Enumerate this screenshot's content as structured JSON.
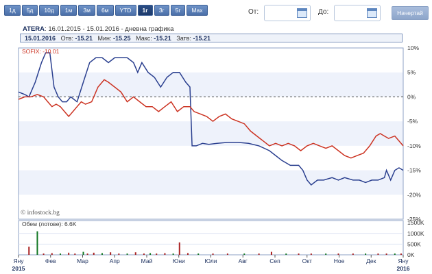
{
  "toolbar": {
    "ranges": [
      "1д",
      "5д",
      "10д",
      "1м",
      "3м",
      "6м",
      "YTD",
      "1г",
      "3г",
      "5г",
      "Max"
    ],
    "active_range": "1г",
    "from_label": "От:",
    "to_label": "До:",
    "draw_label": "Начертай"
  },
  "header": {
    "symbol": "ATERA",
    "period": "16.01.2015 - 15.01.2016 - дневна графика",
    "quote": {
      "date": "15.01.2016",
      "open_label": "Отв:",
      "open": "-15.21",
      "min_label": "Мин:",
      "min": "-15.25",
      "max_label": "Макс:",
      "max": "-15.21",
      "close_label": "Затв:",
      "close": "-15.21"
    }
  },
  "chart_data": [
    {
      "type": "line",
      "legend": "SOFIX: -10.01",
      "watermark": "© infostock.bg",
      "ylabel_ticks": [
        "10%",
        "5%",
        "0%",
        "-5%",
        "-10%",
        "-15%",
        "-20%",
        "-25%"
      ],
      "ylim": [
        -25,
        10
      ],
      "x_ticks": [
        "Яну 2015",
        "Фев",
        "Мар",
        "Апр",
        "Май",
        "Юни",
        "Юли",
        "Авг",
        "Сеп",
        "Окт",
        "Ное",
        "Дек",
        "Яну 2016"
      ],
      "series": [
        {
          "name": "ATERA",
          "color": "#2a3f8f",
          "points": [
            [
              0,
              1
            ],
            [
              3,
              0.5
            ],
            [
              5,
              0
            ],
            [
              8,
              3
            ],
            [
              11,
              7
            ],
            [
              13,
              9
            ],
            [
              15,
              9
            ],
            [
              17,
              2
            ],
            [
              19,
              0
            ],
            [
              21,
              -1
            ],
            [
              23,
              -1
            ],
            [
              25,
              0
            ],
            [
              28,
              -1
            ],
            [
              31,
              3
            ],
            [
              34,
              7
            ],
            [
              37,
              8
            ],
            [
              40,
              8
            ],
            [
              43,
              7
            ],
            [
              46,
              8
            ],
            [
              49,
              8
            ],
            [
              52,
              8
            ],
            [
              55,
              7
            ],
            [
              57,
              5
            ],
            [
              59,
              7
            ],
            [
              62,
              5
            ],
            [
              65,
              4
            ],
            [
              68,
              2
            ],
            [
              71,
              4
            ],
            [
              74,
              5
            ],
            [
              77,
              5
            ],
            [
              80,
              3
            ],
            [
              82,
              2
            ],
            [
              83,
              -10
            ],
            [
              85,
              -10
            ],
            [
              88,
              -9.5
            ],
            [
              91,
              -9.7
            ],
            [
              95,
              -9.5
            ],
            [
              100,
              -9.3
            ],
            [
              105,
              -9.3
            ],
            [
              110,
              -9.5
            ],
            [
              115,
              -10
            ],
            [
              120,
              -11
            ],
            [
              123,
              -12
            ],
            [
              126,
              -13
            ],
            [
              130,
              -14
            ],
            [
              134,
              -14
            ],
            [
              136,
              -15
            ],
            [
              138,
              -17
            ],
            [
              140,
              -18
            ],
            [
              143,
              -17
            ],
            [
              146,
              -17
            ],
            [
              150,
              -16.5
            ],
            [
              153,
              -17
            ],
            [
              156,
              -16.5
            ],
            [
              160,
              -17
            ],
            [
              163,
              -17
            ],
            [
              166,
              -17.5
            ],
            [
              169,
              -17
            ],
            [
              172,
              -17
            ],
            [
              175,
              -16.5
            ],
            [
              176,
              -15
            ],
            [
              178,
              -17
            ],
            [
              180,
              -15
            ],
            [
              182,
              -14.5
            ],
            [
              184,
              -15
            ]
          ]
        },
        {
          "name": "SOFIX",
          "color": "#cc3322",
          "points": [
            [
              0,
              -0.5
            ],
            [
              3,
              0
            ],
            [
              6,
              0
            ],
            [
              9,
              0.5
            ],
            [
              12,
              0
            ],
            [
              14,
              -1
            ],
            [
              16,
              -2
            ],
            [
              18,
              -1.5
            ],
            [
              20,
              -2
            ],
            [
              22,
              -3
            ],
            [
              24,
              -4
            ],
            [
              26,
              -3
            ],
            [
              28,
              -2
            ],
            [
              30,
              -1
            ],
            [
              32,
              -1.5
            ],
            [
              35,
              -1
            ],
            [
              38,
              2
            ],
            [
              41,
              3.5
            ],
            [
              43,
              3
            ],
            [
              46,
              2
            ],
            [
              49,
              1
            ],
            [
              52,
              -1
            ],
            [
              55,
              0
            ],
            [
              58,
              -1
            ],
            [
              61,
              -2
            ],
            [
              64,
              -2
            ],
            [
              67,
              -3
            ],
            [
              70,
              -2
            ],
            [
              73,
              -1
            ],
            [
              76,
              -3
            ],
            [
              79,
              -2
            ],
            [
              82,
              -2
            ],
            [
              84,
              -3
            ],
            [
              87,
              -3.5
            ],
            [
              90,
              -4
            ],
            [
              93,
              -5
            ],
            [
              96,
              -4
            ],
            [
              99,
              -3.5
            ],
            [
              102,
              -4.5
            ],
            [
              105,
              -5
            ],
            [
              108,
              -5.5
            ],
            [
              111,
              -7
            ],
            [
              114,
              -8
            ],
            [
              117,
              -9
            ],
            [
              120,
              -10
            ],
            [
              123,
              -9.5
            ],
            [
              126,
              -10
            ],
            [
              129,
              -9.5
            ],
            [
              132,
              -10
            ],
            [
              135,
              -11
            ],
            [
              138,
              -10
            ],
            [
              141,
              -9.5
            ],
            [
              144,
              -10
            ],
            [
              147,
              -10.5
            ],
            [
              150,
              -10
            ],
            [
              153,
              -11
            ],
            [
              156,
              -12
            ],
            [
              159,
              -12.5
            ],
            [
              162,
              -12
            ],
            [
              165,
              -11.5
            ],
            [
              168,
              -10
            ],
            [
              171,
              -8
            ],
            [
              173,
              -7.5
            ],
            [
              175,
              -8
            ],
            [
              177,
              -8.5
            ],
            [
              180,
              -8
            ],
            [
              182,
              -9
            ],
            [
              184,
              -10
            ]
          ]
        }
      ]
    },
    {
      "type": "bar",
      "legend": "Обем (лотове): 6.6K",
      "ylabel_ticks": [
        "1500K",
        "1000K",
        "500K",
        "0K"
      ],
      "ylim": [
        0,
        1600
      ],
      "bars": [
        [
          5,
          380
        ],
        [
          9,
          1100
        ],
        [
          12,
          60
        ],
        [
          16,
          80
        ],
        [
          20,
          60
        ],
        [
          24,
          100
        ],
        [
          27,
          60
        ],
        [
          31,
          140
        ],
        [
          33,
          60
        ],
        [
          36,
          100
        ],
        [
          40,
          80
        ],
        [
          44,
          120
        ],
        [
          48,
          60
        ],
        [
          52,
          60
        ],
        [
          56,
          120
        ],
        [
          60,
          60
        ],
        [
          63,
          80
        ],
        [
          66,
          60
        ],
        [
          70,
          80
        ],
        [
          74,
          60
        ],
        [
          77,
          580
        ],
        [
          81,
          80
        ],
        [
          86,
          60
        ],
        [
          93,
          60
        ],
        [
          100,
          60
        ],
        [
          108,
          60
        ],
        [
          115,
          60
        ],
        [
          121,
          140
        ],
        [
          128,
          60
        ],
        [
          134,
          60
        ],
        [
          140,
          60
        ],
        [
          147,
          60
        ],
        [
          153,
          60
        ],
        [
          160,
          60
        ],
        [
          166,
          60
        ],
        [
          172,
          60
        ],
        [
          176,
          60
        ],
        [
          180,
          60
        ],
        [
          183,
          60
        ]
      ]
    }
  ]
}
